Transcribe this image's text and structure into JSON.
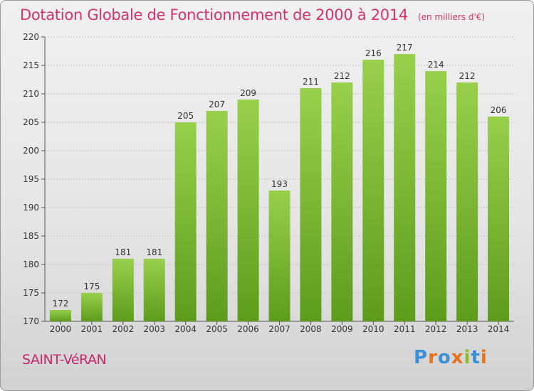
{
  "header": {
    "title": "Dotation Globale de Fonctionnement de 2000 à 2014",
    "subtitle": "(en milliers d'€)"
  },
  "footer": {
    "place": "SAINT-VéRAN",
    "logo_text": "Proxiti"
  },
  "colors": {
    "title": "#d0346c",
    "bar_top": "#98d04c",
    "bar_bottom": "#5e9c1c",
    "logo": [
      "#3b8fd6",
      "#e8731a",
      "#3b8fd6",
      "#e8731a",
      "#8bbf2a",
      "#3b8fd6",
      "#e8731a"
    ]
  },
  "chart_data": {
    "type": "bar",
    "categories": [
      "2000",
      "2001",
      "2002",
      "2003",
      "2004",
      "2005",
      "2006",
      "2007",
      "2008",
      "2009",
      "2010",
      "2011",
      "2012",
      "2013",
      "2014"
    ],
    "values": [
      172,
      175,
      181,
      181,
      205,
      207,
      209,
      193,
      211,
      212,
      216,
      217,
      214,
      212,
      206
    ],
    "data_labels": [
      "172",
      "175",
      "181",
      "181",
      "205",
      "207",
      "209",
      "193",
      "211",
      "212",
      "216",
      "217",
      "214",
      "212",
      "206"
    ],
    "ylim": [
      170,
      220
    ],
    "yticks": [
      170,
      175,
      180,
      185,
      190,
      195,
      200,
      205,
      210,
      215,
      220
    ],
    "grid": true,
    "legend": "none",
    "xlabel": "",
    "ylabel": ""
  }
}
